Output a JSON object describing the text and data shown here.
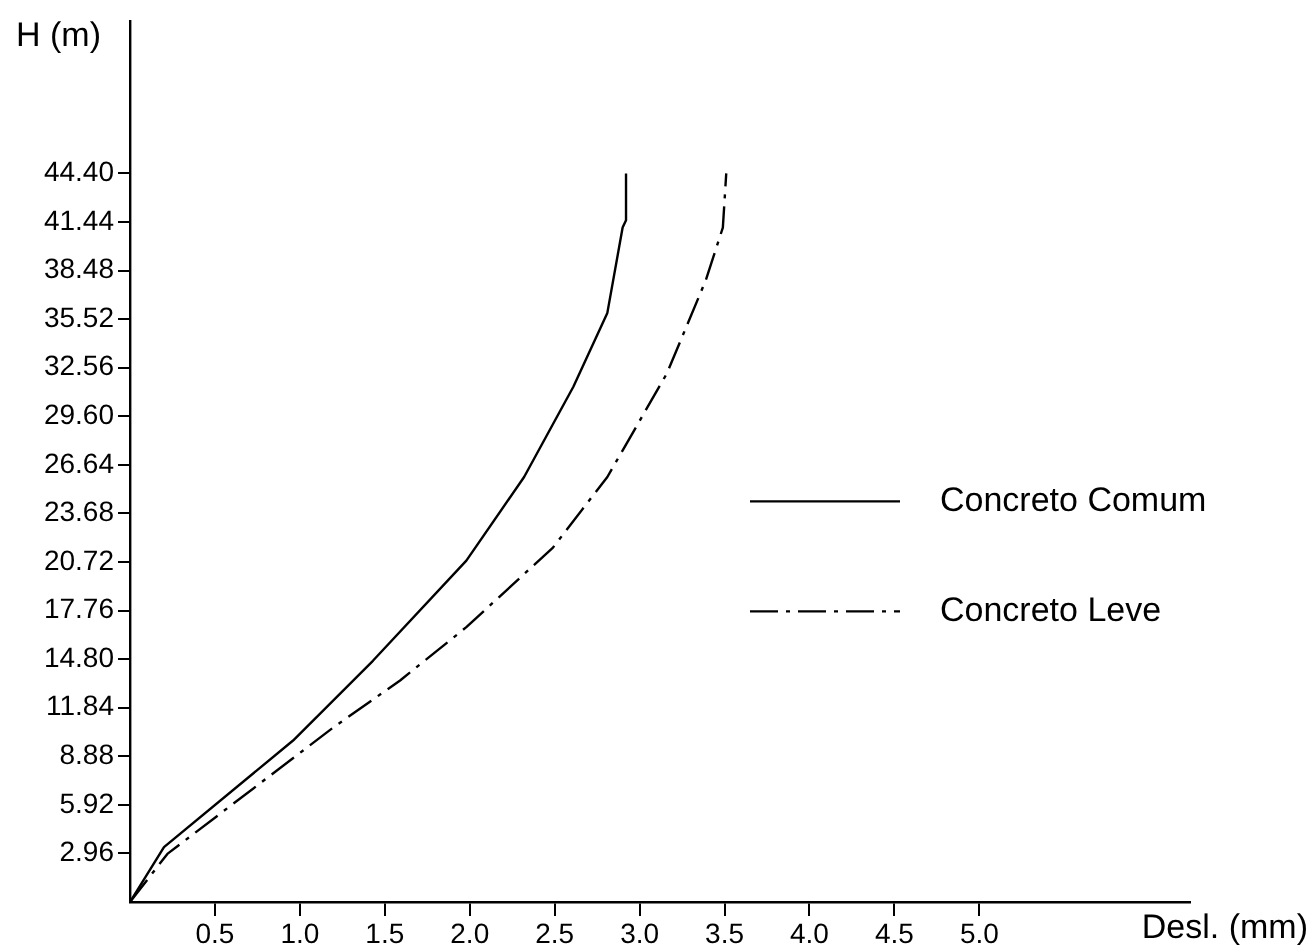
{
  "chart_data": {
    "type": "line",
    "xlabel": "Desl. (mm)",
    "ylabel": "H (m)",
    "xlim": [
      0,
      6.24
    ],
    "ylim": [
      0,
      53.7
    ],
    "xticks": [
      0.5,
      {
        "value": 1,
        "label": "1.0"
      },
      1.5,
      {
        "value": 2,
        "label": "2.0"
      },
      {
        "value": 2.5,
        "label": "2.5"
      },
      {
        "value": 3,
        "label": "3.0"
      },
      {
        "value": 3.5,
        "label": "3.5"
      },
      {
        "value": 4,
        "label": "4.0"
      },
      {
        "value": 4.5,
        "label": "4.5"
      },
      {
        "value": 5,
        "label": "5.0"
      }
    ],
    "yticks": [
      2.96,
      5.92,
      8.88,
      11.84,
      {
        "value": 14.8,
        "label": "14.80"
      },
      17.76,
      20.72,
      23.68,
      26.64,
      {
        "value": 29.6,
        "label": "29.60"
      },
      32.56,
      35.52,
      38.48,
      41.44,
      {
        "value": 44.4,
        "label": "44.40"
      }
    ],
    "grid": false,
    "legend": "right",
    "marker": "none",
    "series": [
      {
        "name": "Concreto Comum",
        "color": "#000000",
        "line_style": "solid",
        "x": [
          0,
          0.2,
          0.96,
          1.43,
          1.98,
          2.32,
          2.61,
          2.81,
          2.9,
          2.92,
          2.92
        ],
        "values": [
          0,
          3.34,
          9.84,
          14.7,
          20.8,
          25.9,
          31.4,
          35.9,
          41.1,
          41.55,
          44.4
        ]
      },
      {
        "name": "Concreto Leve",
        "color": "#000000",
        "line_style": "dashed",
        "x": [
          0,
          0.22,
          1.2,
          1.59,
          1.98,
          2.49,
          2.81,
          3.16,
          3.39,
          3.49,
          3.51
        ],
        "values": [
          0,
          2.93,
          10.66,
          13.5,
          16.75,
          21.6,
          25.9,
          32.2,
          37.9,
          41.1,
          44.4
        ]
      }
    ]
  }
}
